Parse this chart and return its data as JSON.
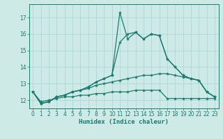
{
  "x": [
    0,
    1,
    2,
    3,
    4,
    5,
    6,
    7,
    8,
    9,
    10,
    11,
    12,
    13,
    14,
    15,
    16,
    17,
    18,
    19,
    20,
    21,
    22,
    23
  ],
  "line_main": [
    12.5,
    11.8,
    11.9,
    12.2,
    12.3,
    12.5,
    12.6,
    12.8,
    13.1,
    13.3,
    13.5,
    17.3,
    15.7,
    16.1,
    15.7,
    16.0,
    15.9,
    14.5,
    14.0,
    13.5,
    13.3,
    13.2,
    12.5,
    12.2
  ],
  "line2": [
    12.5,
    11.8,
    11.9,
    12.2,
    12.3,
    12.5,
    12.6,
    12.8,
    13.1,
    13.3,
    13.5,
    15.5,
    16.0,
    16.1,
    15.7,
    16.0,
    15.9,
    14.5,
    14.0,
    13.5,
    13.3,
    13.2,
    12.5,
    12.2
  ],
  "line3": [
    12.5,
    11.8,
    11.9,
    12.2,
    12.3,
    12.5,
    12.6,
    12.7,
    12.9,
    13.0,
    13.1,
    13.2,
    13.3,
    13.4,
    13.5,
    13.5,
    13.6,
    13.6,
    13.5,
    13.4,
    13.3,
    13.2,
    12.5,
    12.2
  ],
  "line4": [
    12.5,
    11.9,
    12.0,
    12.1,
    12.2,
    12.2,
    12.3,
    12.3,
    12.4,
    12.4,
    12.5,
    12.5,
    12.5,
    12.6,
    12.6,
    12.6,
    12.6,
    12.1,
    12.1,
    12.1,
    12.1,
    12.1,
    12.1,
    12.1
  ],
  "line_color": "#1a7a6e",
  "bg_color": "#ceeae6",
  "grid_color": "#a8d4d0",
  "xlabel": "Humidex (Indice chaleur)",
  "yticks": [
    12,
    13,
    14,
    15,
    16,
    17
  ],
  "ylim": [
    11.5,
    17.8
  ],
  "xlim": [
    -0.5,
    23.5
  ],
  "markersize": 3,
  "linewidth": 0.9,
  "tick_fontsize": 5.5,
  "xlabel_fontsize": 6.5
}
